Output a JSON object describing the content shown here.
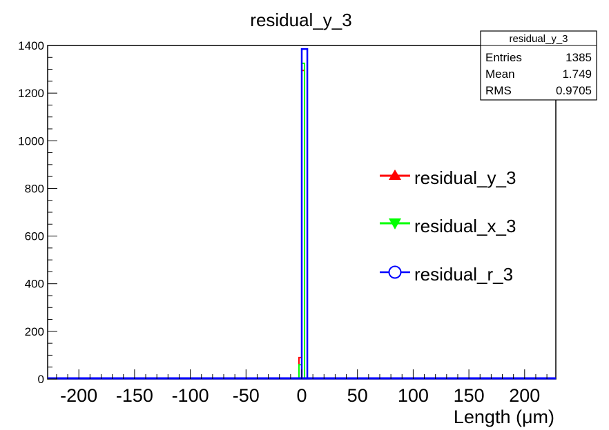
{
  "chart_data": {
    "type": "histogram",
    "title": "residual_y_3",
    "xlabel": "Length (μm)",
    "ylabel": "",
    "xlim": [
      -228,
      228
    ],
    "ylim": [
      0,
      1400
    ],
    "x_ticks": [
      -200,
      -150,
      -100,
      -50,
      0,
      50,
      100,
      150,
      200
    ],
    "y_ticks": [
      0,
      200,
      400,
      600,
      800,
      1000,
      1200,
      1400
    ],
    "grid": false,
    "legend_position": "right",
    "stats_box": {
      "title": "residual_y_3",
      "rows": [
        {
          "label": "Entries",
          "value": "1385"
        },
        {
          "label": "Mean",
          "value": "1.749"
        },
        {
          "label": "RMS",
          "value": "0.9705"
        }
      ]
    },
    "series": [
      {
        "name": "residual_y_3",
        "color": "#ff0000",
        "marker": "triangle-up",
        "bins": [
          {
            "x0": -2.5,
            "x1": 0,
            "y": 90
          },
          {
            "x0": 0,
            "x1": 2.5,
            "y": 1295
          }
        ]
      },
      {
        "name": "residual_x_3",
        "color": "#00ff00",
        "marker": "triangle-down",
        "bins": [
          {
            "x0": -2.5,
            "x1": 0,
            "y": 60
          },
          {
            "x0": 0,
            "x1": 2.5,
            "y": 1325
          }
        ]
      },
      {
        "name": "residual_r_3",
        "color": "#0000ff",
        "marker": "circle-open",
        "bins": [
          {
            "x0": 0,
            "x1": 5,
            "y": 1385
          }
        ]
      }
    ]
  }
}
